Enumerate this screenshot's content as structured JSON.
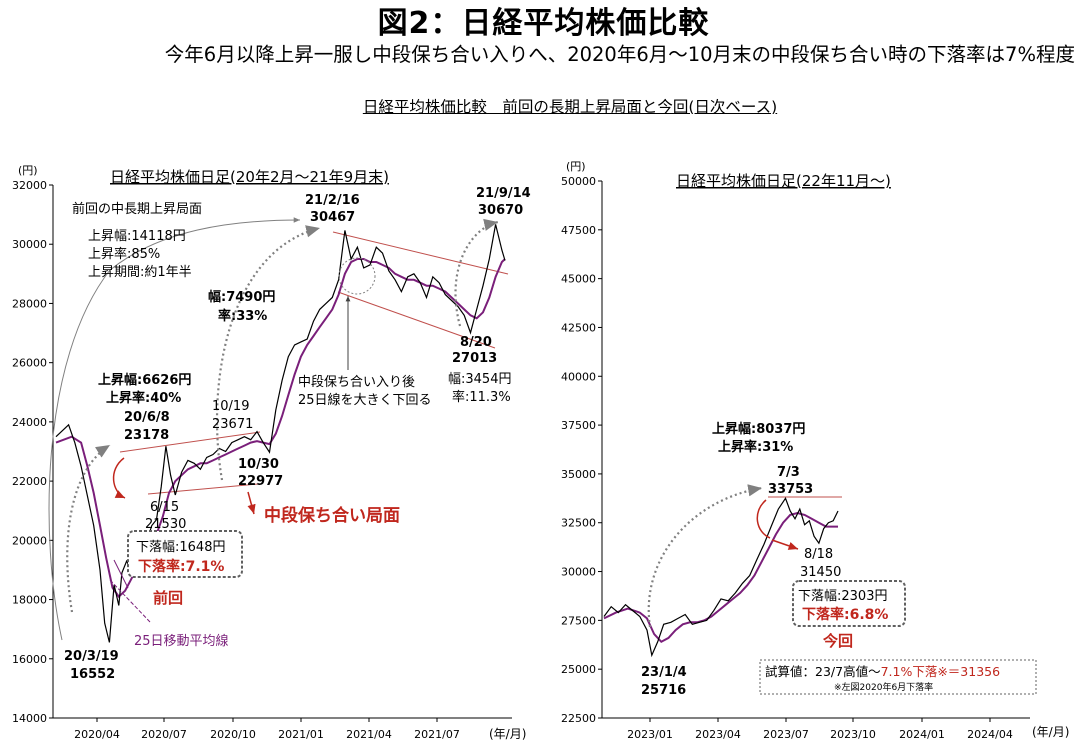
{
  "header": {
    "title": "図2：日経平均株価比較",
    "subtitle": "今年6月以降上昇一服し中段保ち合い入りへ、2020年6月～10月末の中段保ち合い時の下落率は7%程度",
    "section_title": "日経平均株価比較　前回の長期上昇局面と今回(日次ベース)"
  },
  "colors": {
    "price": "#000000",
    "ma": "#7a1f7a",
    "channel": "#c0504d",
    "accent": "#c0271d",
    "arrow": "#808080",
    "box": "#606060"
  },
  "chart_data": [
    {
      "type": "line",
      "title": "日経平均株価日足(20年2月～21年9月末)",
      "y_unit": "(円)",
      "x_unit": "(年/月)",
      "ylim": [
        14000,
        32000
      ],
      "y_ticks": [
        14000,
        16000,
        18000,
        20000,
        22000,
        24000,
        26000,
        28000,
        30000,
        32000
      ],
      "x_tick_labels": [
        "2020/04",
        "2020/07",
        "2020/10",
        "2021/01",
        "2021/04",
        "2021/07"
      ],
      "grid": false,
      "series": [
        {
          "kind": "close",
          "points": [
            [
              0,
              23500
            ],
            [
              8,
              23900
            ],
            [
              12,
              23300
            ],
            [
              16,
              22500
            ],
            [
              20,
              21500
            ],
            [
              24,
              20500
            ],
            [
              28,
              19000
            ],
            [
              31,
              17200
            ],
            [
              34,
              16552
            ],
            [
              37,
              18500
            ],
            [
              40,
              17800
            ],
            [
              42,
              18900
            ],
            [
              45,
              19300
            ],
            [
              48,
              19000
            ],
            [
              51,
              19700
            ],
            [
              55,
              20200
            ],
            [
              58,
              20000
            ],
            [
              61,
              20500
            ],
            [
              64,
              20700
            ],
            [
              67,
              21800
            ],
            [
              70,
              23178
            ],
            [
              73,
              22200
            ],
            [
              76,
              21530
            ],
            [
              80,
              22300
            ],
            [
              84,
              22700
            ],
            [
              88,
              22600
            ],
            [
              92,
              22400
            ],
            [
              96,
              22800
            ],
            [
              100,
              22900
            ],
            [
              104,
              23100
            ],
            [
              108,
              23000
            ],
            [
              112,
              23300
            ],
            [
              116,
              23400
            ],
            [
              120,
              23500
            ],
            [
              124,
              23400
            ],
            [
              128,
              23671
            ],
            [
              132,
              23300
            ],
            [
              136,
              22977
            ],
            [
              140,
              24400
            ],
            [
              144,
              25400
            ],
            [
              148,
              26200
            ],
            [
              152,
              26600
            ],
            [
              156,
              26700
            ],
            [
              160,
              26800
            ],
            [
              164,
              27400
            ],
            [
              168,
              27800
            ],
            [
              172,
              28000
            ],
            [
              176,
              28200
            ],
            [
              180,
              28800
            ],
            [
              184,
              30467
            ],
            [
              188,
              29500
            ],
            [
              192,
              29900
            ],
            [
              196,
              29200
            ],
            [
              200,
              29300
            ],
            [
              204,
              29900
            ],
            [
              208,
              29700
            ],
            [
              212,
              29100
            ],
            [
              216,
              28800
            ],
            [
              220,
              28400
            ],
            [
              224,
              28900
            ],
            [
              228,
              29000
            ],
            [
              232,
              28700
            ],
            [
              236,
              28200
            ],
            [
              240,
              28900
            ],
            [
              244,
              28700
            ],
            [
              248,
              28300
            ],
            [
              252,
              28100
            ],
            [
              256,
              27900
            ],
            [
              260,
              27600
            ],
            [
              264,
              27013
            ],
            [
              268,
              27800
            ],
            [
              272,
              28600
            ],
            [
              276,
              29500
            ],
            [
              280,
              30670
            ],
            [
              284,
              29800
            ],
            [
              286,
              29450
            ]
          ]
        },
        {
          "kind": "25日移動平均線",
          "points": [
            [
              0,
              23300
            ],
            [
              10,
              23500
            ],
            [
              16,
              23300
            ],
            [
              20,
              22500
            ],
            [
              24,
              21600
            ],
            [
              28,
              20500
            ],
            [
              32,
              19400
            ],
            [
              36,
              18400
            ],
            [
              40,
              18100
            ],
            [
              44,
              18300
            ],
            [
              48,
              18700
            ],
            [
              52,
              19100
            ],
            [
              56,
              19500
            ],
            [
              60,
              19800
            ],
            [
              64,
              20200
            ],
            [
              68,
              20800
            ],
            [
              72,
              21600
            ],
            [
              76,
              22000
            ],
            [
              80,
              22200
            ],
            [
              84,
              22400
            ],
            [
              88,
              22500
            ],
            [
              92,
              22600
            ],
            [
              96,
              22600
            ],
            [
              100,
              22700
            ],
            [
              104,
              22800
            ],
            [
              108,
              22900
            ],
            [
              112,
              23000
            ],
            [
              116,
              23100
            ],
            [
              120,
              23200
            ],
            [
              124,
              23300
            ],
            [
              128,
              23350
            ],
            [
              132,
              23300
            ],
            [
              136,
              23250
            ],
            [
              140,
              23600
            ],
            [
              144,
              24200
            ],
            [
              148,
              24900
            ],
            [
              152,
              25600
            ],
            [
              156,
              26200
            ],
            [
              160,
              26600
            ],
            [
              164,
              26900
            ],
            [
              168,
              27200
            ],
            [
              172,
              27500
            ],
            [
              176,
              27800
            ],
            [
              180,
              28300
            ],
            [
              184,
              29000
            ],
            [
              188,
              29400
            ],
            [
              192,
              29500
            ],
            [
              196,
              29500
            ],
            [
              200,
              29400
            ],
            [
              204,
              29400
            ],
            [
              208,
              29300
            ],
            [
              212,
              29200
            ],
            [
              216,
              29000
            ],
            [
              220,
              28900
            ],
            [
              224,
              28800
            ],
            [
              228,
              28800
            ],
            [
              232,
              28700
            ],
            [
              236,
              28600
            ],
            [
              240,
              28600
            ],
            [
              244,
              28500
            ],
            [
              248,
              28400
            ],
            [
              252,
              28200
            ],
            [
              256,
              28000
            ],
            [
              260,
              27800
            ],
            [
              264,
              27600
            ],
            [
              268,
              27500
            ],
            [
              272,
              27700
            ],
            [
              276,
              28200
            ],
            [
              280,
              28900
            ],
            [
              284,
              29400
            ],
            [
              286,
              29500
            ]
          ]
        }
      ],
      "annotations": [
        "前回の中長期上昇局面",
        "上昇幅:14118円",
        "上昇率:85%",
        "上昇期間:約1年半",
        "21/2/16",
        "30467",
        "21/9/14",
        "30670",
        "幅:7490円",
        "率:33%",
        "10/19",
        "23671",
        "10/30",
        "22977",
        "上昇幅:6626円",
        "上昇率:40%",
        "20/6/8",
        "23178",
        "6/15",
        "21530",
        "中段保ち合い局面",
        "下落幅:1648円",
        "下落率:7.1%",
        "前回",
        "25日移動平均線",
        "20/3/19",
        "16552",
        "中段保ち合い入り後",
        "25日線を大きく下回る",
        "8/20",
        "27013",
        "幅:3454円",
        "率:11.3%"
      ]
    },
    {
      "type": "line",
      "title": "日経平均株価日足(22年11月～)",
      "y_unit": "(円)",
      "x_unit": "(年/月)",
      "ylim": [
        22500,
        50000
      ],
      "y_ticks": [
        22500,
        25000,
        27500,
        30000,
        32500,
        35000,
        37500,
        40000,
        42500,
        45000,
        47500,
        50000
      ],
      "x_tick_labels": [
        "2023/01",
        "2023/04",
        "2023/07",
        "2023/10",
        "2024/01",
        "2024/04"
      ],
      "grid": false,
      "series": [
        {
          "kind": "close",
          "points": [
            [
              0,
              27700
            ],
            [
              6,
              28200
            ],
            [
              12,
              27900
            ],
            [
              18,
              28300
            ],
            [
              24,
              28000
            ],
            [
              30,
              27700
            ],
            [
              36,
              27000
            ],
            [
              40,
              25716
            ],
            [
              45,
              26400
            ],
            [
              50,
              27300
            ],
            [
              56,
              27400
            ],
            [
              62,
              27600
            ],
            [
              68,
              27800
            ],
            [
              74,
              27300
            ],
            [
              80,
              27400
            ],
            [
              86,
              27500
            ],
            [
              92,
              28000
            ],
            [
              98,
              28600
            ],
            [
              104,
              28500
            ],
            [
              110,
              28900
            ],
            [
              116,
              29400
            ],
            [
              122,
              29800
            ],
            [
              128,
              30600
            ],
            [
              134,
              31400
            ],
            [
              140,
              32300
            ],
            [
              146,
              33200
            ],
            [
              152,
              33753
            ],
            [
              156,
              33100
            ],
            [
              160,
              32700
            ],
            [
              164,
              33200
            ],
            [
              168,
              32400
            ],
            [
              172,
              32600
            ],
            [
              176,
              31800
            ],
            [
              180,
              31450
            ],
            [
              184,
              32200
            ],
            [
              188,
              32500
            ],
            [
              192,
              32600
            ],
            [
              196,
              33100
            ]
          ]
        },
        {
          "kind": "25日移動平均線",
          "points": [
            [
              0,
              27600
            ],
            [
              10,
              27900
            ],
            [
              20,
              28100
            ],
            [
              30,
              27900
            ],
            [
              36,
              27600
            ],
            [
              42,
              26800
            ],
            [
              48,
              26400
            ],
            [
              54,
              26600
            ],
            [
              60,
              27000
            ],
            [
              66,
              27300
            ],
            [
              72,
              27400
            ],
            [
              78,
              27400
            ],
            [
              84,
              27500
            ],
            [
              90,
              27700
            ],
            [
              96,
              28000
            ],
            [
              102,
              28300
            ],
            [
              108,
              28600
            ],
            [
              114,
              28900
            ],
            [
              120,
              29300
            ],
            [
              126,
              29800
            ],
            [
              132,
              30500
            ],
            [
              138,
              31200
            ],
            [
              144,
              31900
            ],
            [
              150,
              32500
            ],
            [
              156,
              32900
            ],
            [
              162,
              33000
            ],
            [
              168,
              32900
            ],
            [
              174,
              32700
            ],
            [
              180,
              32500
            ],
            [
              186,
              32300
            ],
            [
              192,
              32300
            ],
            [
              196,
              32300
            ]
          ]
        }
      ],
      "annotations": [
        "上昇幅:8037円",
        "上昇率:31%",
        "7/3",
        "33753",
        "8/18",
        "31450",
        "下落幅:2303円",
        "下落率:6.8%",
        "今回",
        "23/1/4",
        "25716"
      ],
      "note": {
        "text": "試算値：23/7高値～",
        "highlight": "7.1%下落※＝31356",
        "footnote": "※左図2020年6月下落率"
      }
    }
  ]
}
